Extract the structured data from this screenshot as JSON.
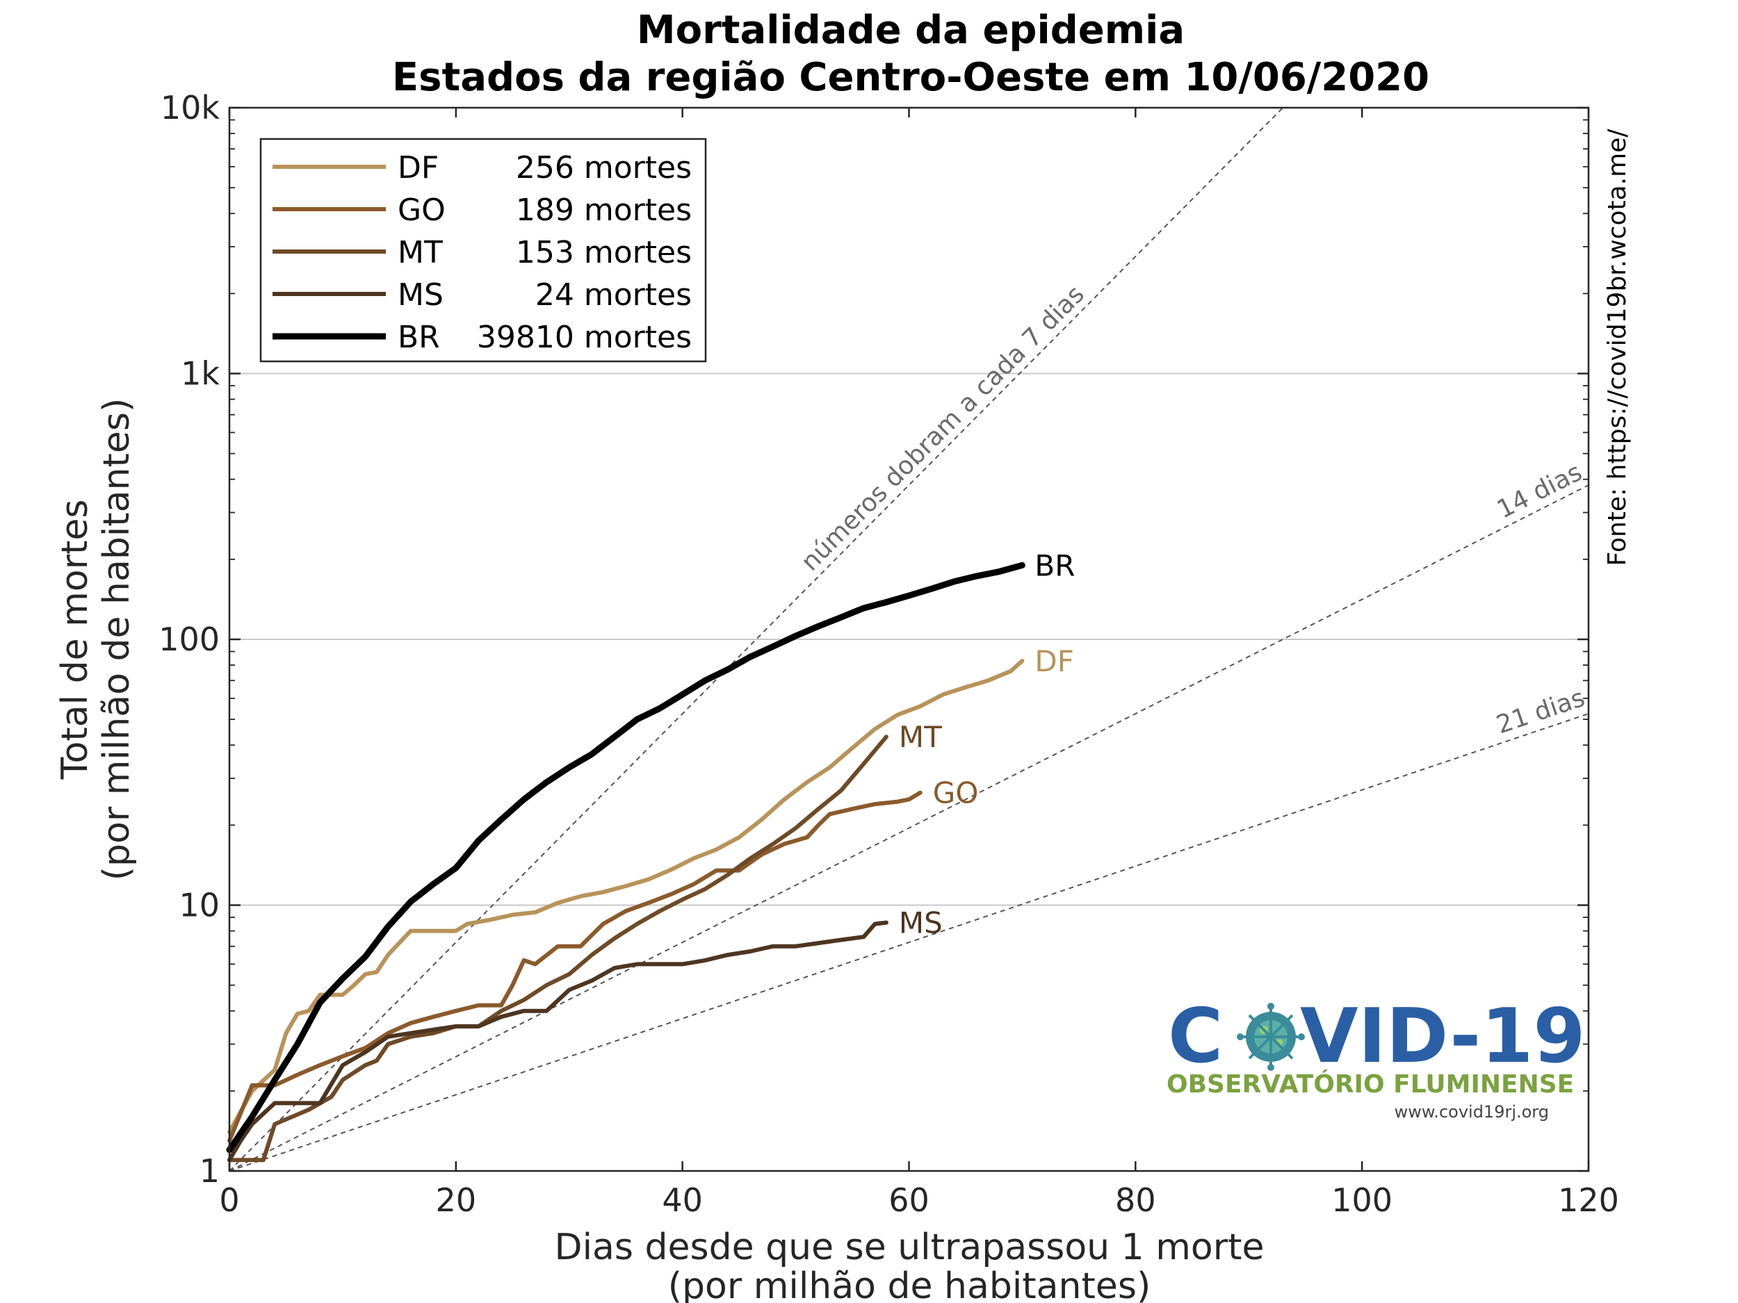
{
  "chart_data": {
    "type": "line",
    "title": "Mortalidade da epidemia",
    "subtitle": "Estados da região Centro-Oeste em 10/06/2020",
    "xlabel_line1": "Dias desde que se ultrapassou 1 morte",
    "xlabel_line2": "(por milhão de habitantes)",
    "ylabel_line1": "Total de mortes",
    "ylabel_line2": "(por milhão de habitantes)",
    "xlim": [
      0,
      120
    ],
    "ylim": [
      1,
      10000
    ],
    "y_scale": "log",
    "x_ticks": [
      0,
      20,
      40,
      60,
      80,
      100,
      120
    ],
    "x_tick_labels": [
      "0",
      "20",
      "40",
      "60",
      "80",
      "100",
      "120"
    ],
    "y_ticks": [
      1,
      10,
      100,
      1000,
      10000
    ],
    "y_tick_labels": [
      "1",
      "10",
      "100",
      "1k",
      "10k"
    ],
    "grid": "horizontal at decades",
    "legend_position": "top-left",
    "source_text": "Fonte: https://covid19br.wcota.me/",
    "series": [
      {
        "name": "DF",
        "deaths_label": "256 mortes",
        "color": "#b8935a",
        "width": 6,
        "end_label": "DF",
        "x": [
          0,
          2,
          4,
          5,
          6,
          7,
          8,
          10,
          11,
          12,
          13,
          14,
          16,
          18,
          20,
          21,
          23,
          25,
          27,
          29,
          31,
          33,
          35,
          37,
          39,
          41,
          43,
          45,
          47,
          49,
          51,
          53,
          55,
          57,
          59,
          61,
          63,
          65,
          67,
          69,
          70
        ],
        "y": [
          1.4,
          2.0,
          2.4,
          3.3,
          3.9,
          4.0,
          4.6,
          4.6,
          5.0,
          5.5,
          5.6,
          6.5,
          8.0,
          8.0,
          8.0,
          8.5,
          8.8,
          9.2,
          9.4,
          10.2,
          10.8,
          11.2,
          11.8,
          12.5,
          13.6,
          15.0,
          16.2,
          18.0,
          21.0,
          25.0,
          29.0,
          33.0,
          39.0,
          46.0,
          52.0,
          56.0,
          62.0,
          66.0,
          70.0,
          76.0,
          83.0
        ]
      },
      {
        "name": "GO",
        "deaths_label": "189 mortes",
        "color": "#8b5a2b",
        "width": 6,
        "end_label": "GO",
        "x": [
          0,
          2,
          4,
          6,
          8,
          10,
          12,
          14,
          16,
          18,
          20,
          22,
          24,
          25,
          26,
          27,
          29,
          31,
          33,
          35,
          37,
          39,
          41,
          43,
          45,
          47,
          49,
          51,
          52,
          53,
          55,
          57,
          59,
          60,
          61
        ],
        "y": [
          1.3,
          2.1,
          2.1,
          2.3,
          2.5,
          2.7,
          2.9,
          3.3,
          3.6,
          3.8,
          4.0,
          4.2,
          4.2,
          5.0,
          6.2,
          6.0,
          7.0,
          7.0,
          8.5,
          9.5,
          10.2,
          11.0,
          12.0,
          13.5,
          13.5,
          15.5,
          17.0,
          18.0,
          20.0,
          22.0,
          23.0,
          24.0,
          24.5,
          25.0,
          26.5
        ]
      },
      {
        "name": "MT",
        "deaths_label": "153 mortes",
        "color": "#6e4a27",
        "width": 6,
        "end_label": "MT",
        "x": [
          0,
          3,
          4,
          7,
          9,
          10,
          12,
          13,
          14,
          16,
          18,
          20,
          22,
          24,
          26,
          28,
          30,
          32,
          34,
          36,
          38,
          40,
          42,
          44,
          46,
          48,
          50,
          52,
          54,
          56,
          58
        ],
        "y": [
          1.1,
          1.1,
          1.5,
          1.7,
          1.9,
          2.2,
          2.5,
          2.6,
          3.0,
          3.2,
          3.3,
          3.5,
          3.5,
          4.0,
          4.4,
          5.0,
          5.5,
          6.5,
          7.5,
          8.5,
          9.5,
          10.5,
          11.5,
          13.0,
          15.0,
          17.0,
          19.5,
          23.0,
          27.0,
          34.0,
          43.0
        ]
      },
      {
        "name": "MS",
        "deaths_label": "24 mortes",
        "color": "#4d3520",
        "width": 6,
        "end_label": "MS",
        "x": [
          0,
          1,
          2,
          4,
          6,
          8,
          10,
          12,
          14,
          16,
          18,
          20,
          22,
          24,
          26,
          28,
          30,
          32,
          34,
          36,
          38,
          40,
          42,
          44,
          46,
          48,
          50,
          52,
          54,
          56,
          57,
          58
        ],
        "y": [
          1.1,
          1.3,
          1.5,
          1.8,
          1.8,
          1.8,
          2.5,
          2.8,
          3.2,
          3.3,
          3.4,
          3.5,
          3.5,
          3.8,
          4.0,
          4.0,
          4.8,
          5.2,
          5.8,
          6.0,
          6.0,
          6.0,
          6.2,
          6.5,
          6.7,
          7.0,
          7.0,
          7.2,
          7.4,
          7.6,
          8.5,
          8.6
        ]
      },
      {
        "name": "BR",
        "deaths_label": "39810 mortes",
        "color": "#000000",
        "width": 9,
        "end_label": "BR",
        "x": [
          0,
          2,
          4,
          6,
          8,
          10,
          12,
          14,
          16,
          18,
          20,
          22,
          24,
          26,
          28,
          30,
          32,
          34,
          36,
          38,
          40,
          42,
          44,
          46,
          48,
          50,
          52,
          54,
          56,
          58,
          60,
          62,
          64,
          66,
          68,
          70
        ],
        "y": [
          1.2,
          1.6,
          2.2,
          3.0,
          4.3,
          5.3,
          6.4,
          8.3,
          10.3,
          12.0,
          13.8,
          17.5,
          21.0,
          25.0,
          29.0,
          33.0,
          37.0,
          43.0,
          50.0,
          55.0,
          62.0,
          70.0,
          77.0,
          86.0,
          94.0,
          103.0,
          112.0,
          121.0,
          131.0,
          138.0,
          146.0,
          155.0,
          165.0,
          173.0,
          180.0,
          190.0
        ]
      }
    ],
    "reference_lines": [
      {
        "label": "números dobram a cada 7 dias",
        "doubling_days": 7
      },
      {
        "label": "14 dias",
        "doubling_days": 14
      },
      {
        "label": "21 dias",
        "doubling_days": 21
      }
    ]
  },
  "logo": {
    "main_left": "C",
    "main_right": "VID-19",
    "subtitle": "OBSERVATÓRIO FLUMINENSE",
    "url": "www.covid19rj.org"
  }
}
